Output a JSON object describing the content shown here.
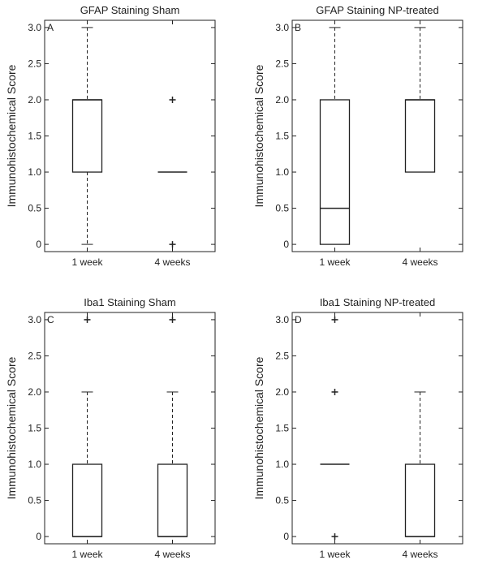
{
  "chart_data": [
    {
      "panel": "A",
      "type": "box",
      "title": "GFAP Staining Sham",
      "ylabel": "Immunohistochemical Score",
      "categories": [
        "1 week",
        "4 weeks"
      ],
      "ylim": [
        -0.1,
        3.1
      ],
      "yticks": [
        "0",
        "0.5",
        "1.0",
        "1.5",
        "2.0",
        "2.5",
        "3.0"
      ],
      "boxes": [
        {
          "min": 0,
          "q1": 1,
          "median": 2,
          "q3": 2,
          "max": 3,
          "outliers": []
        },
        {
          "min": 1,
          "q1": 1,
          "median": 1,
          "q3": 1,
          "max": 1,
          "outliers": [
            2,
            0
          ]
        }
      ]
    },
    {
      "panel": "B",
      "type": "box",
      "title": "GFAP Staining NP-treated",
      "ylabel": "Immunohistochemical Score",
      "categories": [
        "1 week",
        "4 weeks"
      ],
      "ylim": [
        -0.1,
        3.1
      ],
      "yticks": [
        "0",
        "0.5",
        "1.0",
        "1.5",
        "2.0",
        "2.5",
        "3.0"
      ],
      "boxes": [
        {
          "min": 0,
          "q1": 0,
          "median": 0.5,
          "q3": 2,
          "max": 3,
          "outliers": []
        },
        {
          "min": 1,
          "q1": 1,
          "median": 2,
          "q3": 2,
          "max": 3,
          "outliers": []
        }
      ]
    },
    {
      "panel": "C",
      "type": "box",
      "title": "Iba1 Staining Sham",
      "ylabel": "Immunohistochemical Score",
      "categories": [
        "1 week",
        "4 weeks"
      ],
      "ylim": [
        -0.1,
        3.1
      ],
      "yticks": [
        "0",
        "0.5",
        "1.0",
        "1.5",
        "2.0",
        "2.5",
        "3.0"
      ],
      "boxes": [
        {
          "min": 0,
          "q1": 0,
          "median": 0,
          "q3": 1,
          "max": 2,
          "outliers": [
            3
          ]
        },
        {
          "min": 0,
          "q1": 0,
          "median": 0,
          "q3": 1,
          "max": 2,
          "outliers": [
            3
          ]
        }
      ]
    },
    {
      "panel": "D",
      "type": "box",
      "title": "Iba1 Staining NP-treated",
      "ylabel": "Immunohistochemical Score",
      "categories": [
        "1 week",
        "4 weeks"
      ],
      "ylim": [
        -0.1,
        3.1
      ],
      "yticks": [
        "0",
        "0.5",
        "1.0",
        "1.5",
        "2.0",
        "2.5",
        "3.0"
      ],
      "boxes": [
        {
          "min": 1,
          "q1": 1,
          "median": 1,
          "q3": 1,
          "max": 1,
          "outliers": [
            3,
            2,
            0
          ]
        },
        {
          "min": 0,
          "q1": 0,
          "median": 0,
          "q3": 1,
          "max": 2,
          "outliers": []
        }
      ]
    }
  ]
}
